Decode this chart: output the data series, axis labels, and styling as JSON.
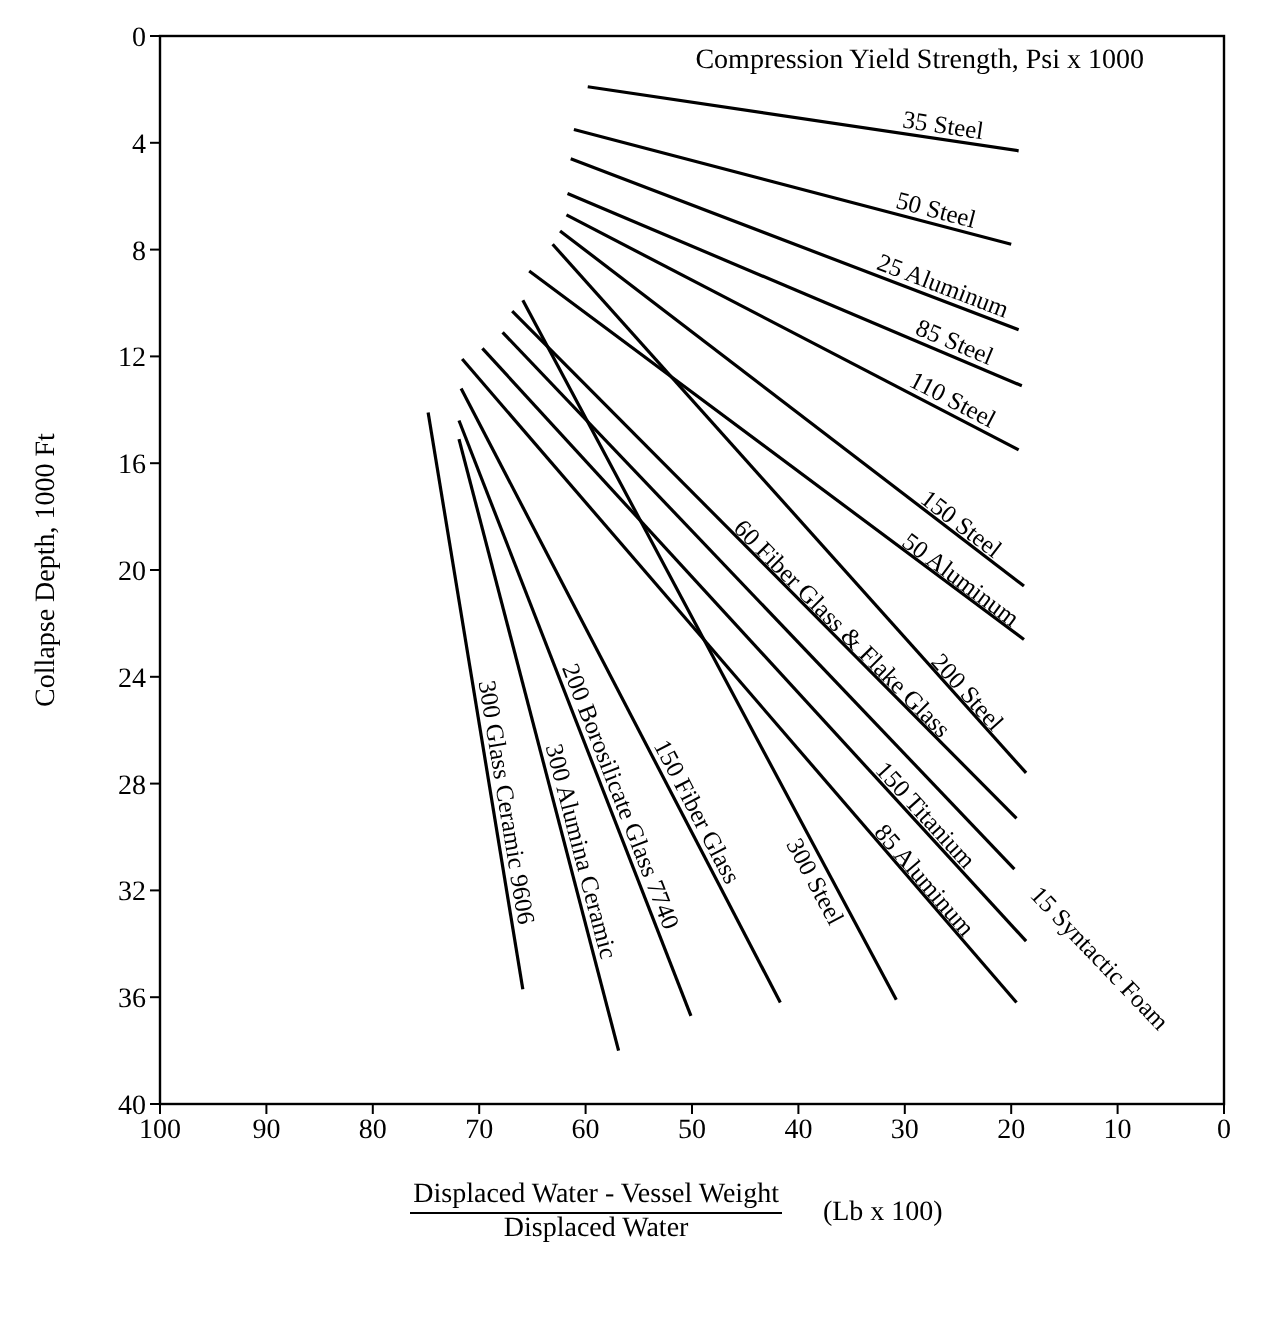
{
  "chart_data": {
    "type": "line",
    "annotations": [
      "Compression Yield Strength, Psi x 1000"
    ],
    "xlabel": "Displaced Water - Vessel Weight\nDisplaced Water\n(Lb x 100)",
    "ylabel": "Collapse Depth,  1000 Ft",
    "xlim": [
      100,
      0
    ],
    "xticks": [
      100,
      90,
      80,
      70,
      60,
      50,
      40,
      30,
      20,
      10,
      0
    ],
    "ylim": [
      40,
      0
    ],
    "yticks": [
      0,
      4,
      8,
      12,
      16,
      20,
      24,
      28,
      32,
      36,
      40
    ],
    "grid": false,
    "legend": false,
    "marker": "none",
    "line_style": "solid",
    "series": [
      {
        "name": "35 Steel",
        "color": "#000000",
        "x": [
          59.8,
          19.3
        ],
        "values": [
          1.9,
          4.3
        ]
      },
      {
        "name": "50 Steel",
        "color": "#000000",
        "x": [
          61.1,
          20.0
        ],
        "values": [
          3.5,
          7.8
        ]
      },
      {
        "name": "25 Aluminum",
        "color": "#000000",
        "x": [
          61.4,
          19.3
        ],
        "values": [
          4.6,
          11.0
        ]
      },
      {
        "name": "85 Steel",
        "color": "#000000",
        "x": [
          61.7,
          19.0
        ],
        "values": [
          5.9,
          13.1
        ]
      },
      {
        "name": "110 Steel",
        "color": "#000000",
        "x": [
          61.8,
          19.3
        ],
        "values": [
          6.7,
          15.5
        ]
      },
      {
        "name": "150 Steel",
        "color": "#000000",
        "x": [
          62.4,
          18.8
        ],
        "values": [
          7.3,
          20.6
        ]
      },
      {
        "name": "200 Steel",
        "color": "#000000",
        "x": [
          63.1,
          18.6
        ],
        "values": [
          7.8,
          27.6
        ]
      },
      {
        "name": "50 Aluminum",
        "color": "#000000",
        "x": [
          65.3,
          18.8
        ],
        "values": [
          8.8,
          22.6
        ]
      },
      {
        "name": "300 Steel",
        "color": "#000000",
        "x": [
          65.9,
          30.8
        ],
        "values": [
          9.9,
          36.1
        ]
      },
      {
        "name": "60 Fiber Glass & Flake Glass",
        "color": "#000000",
        "x": [
          66.9,
          19.5
        ],
        "values": [
          10.3,
          29.3
        ]
      },
      {
        "name": "15 Syntactic Foam",
        "color": "#000000",
        "x": [
          67.8,
          19.7
        ],
        "values": [
          11.1,
          31.2
        ]
      },
      {
        "name": "150 Titanium",
        "color": "#000000",
        "x": [
          69.7,
          18.6
        ],
        "values": [
          11.7,
          33.9
        ]
      },
      {
        "name": "85 Aluminum",
        "color": "#000000",
        "x": [
          71.6,
          19.5
        ],
        "values": [
          12.1,
          36.2
        ]
      },
      {
        "name": "150 Fiber Glass",
        "color": "#000000",
        "x": [
          71.7,
          41.7
        ],
        "values": [
          13.2,
          36.2
        ]
      },
      {
        "name": "200 Borosilicate Glass 7740",
        "color": "#000000",
        "x": [
          71.9,
          50.1
        ],
        "values": [
          14.4,
          36.7
        ]
      },
      {
        "name": "300 Alumina Ceramic",
        "color": "#000000",
        "x": [
          71.9,
          56.9
        ],
        "values": [
          15.1,
          38.0
        ]
      },
      {
        "name": "300 Glass Ceramic 9606",
        "color": "#000000",
        "x": [
          74.8,
          65.9
        ],
        "values": [
          14.1,
          35.7
        ]
      }
    ]
  }
}
